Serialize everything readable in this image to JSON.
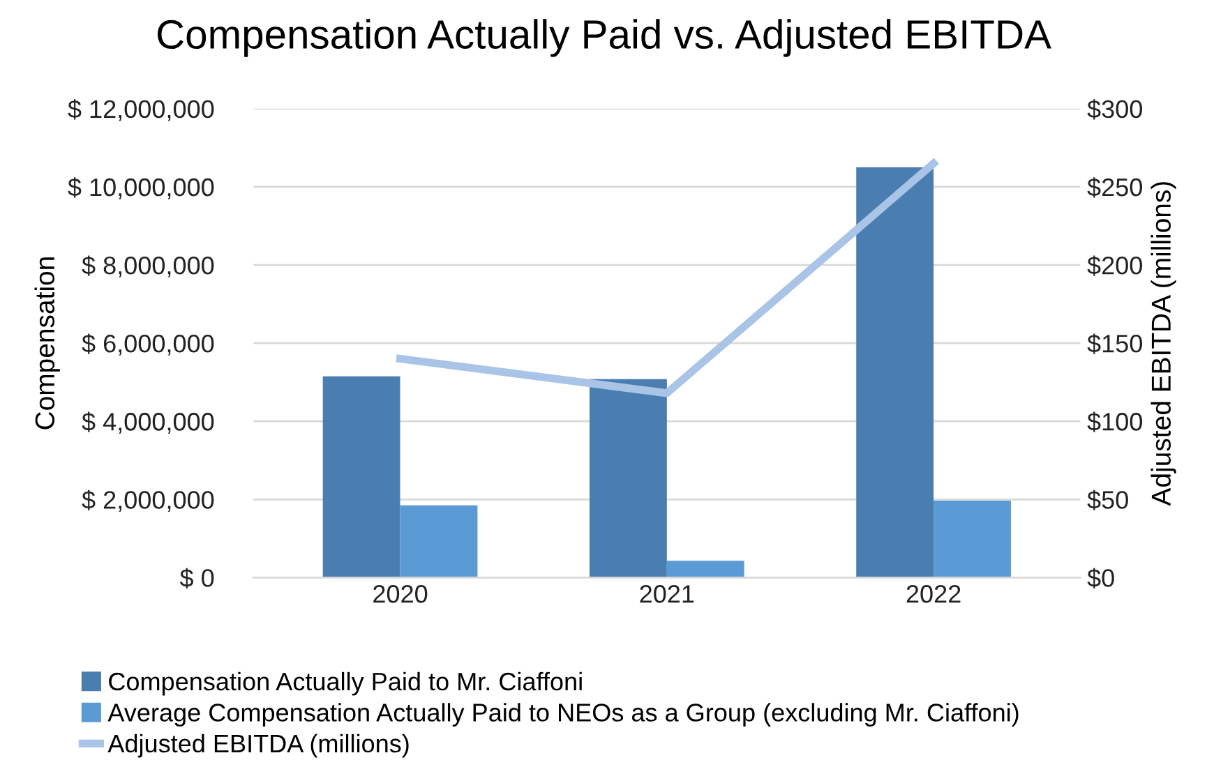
{
  "chart_data": {
    "type": "bar",
    "title": "Compensation Actually Paid vs. Adjusted EBITDA",
    "ylabel": "Compensation",
    "y2label": "Adjusted EBITDA (millions)",
    "categories": [
      "2020",
      "2021",
      "2022"
    ],
    "series": [
      {
        "name": "Compensation Actually Paid to Mr. Ciaffoni",
        "color": "#4a7eb0",
        "values": [
          5150000,
          5080000,
          10500000
        ]
      },
      {
        "name": "Average Compensation Actually Paid to NEOs as a Group (excluding Mr. Ciaffoni)",
        "color": "#5b9bd5",
        "values": [
          1850000,
          430000,
          1970000
        ]
      },
      {
        "name": "Adjusted EBITDA (millions)",
        "type": "line",
        "axis": "y2",
        "color": "#a9c4e6",
        "values": [
          140,
          118,
          265
        ]
      }
    ],
    "ylim": [
      0,
      12000000
    ],
    "yticks": [
      {
        "value": 0,
        "label": "$ 0"
      },
      {
        "value": 2000000,
        "label": "$ 2,000,000"
      },
      {
        "value": 4000000,
        "label": "$ 4,000,000"
      },
      {
        "value": 6000000,
        "label": "$ 6,000,000"
      },
      {
        "value": 8000000,
        "label": "$ 8,000,000"
      },
      {
        "value": 10000000,
        "label": "$ 10,000,000"
      },
      {
        "value": 12000000,
        "label": "$ 12,000,000"
      }
    ],
    "y2lim": [
      0,
      300
    ],
    "y2ticks": [
      {
        "value": 0,
        "label": "$0"
      },
      {
        "value": 50,
        "label": "$50"
      },
      {
        "value": 100,
        "label": "$100"
      },
      {
        "value": 150,
        "label": "$150"
      },
      {
        "value": 200,
        "label": "$200"
      },
      {
        "value": 250,
        "label": "$250"
      },
      {
        "value": 300,
        "label": "$300"
      }
    ],
    "grid": "y",
    "legend": "bottom left"
  }
}
